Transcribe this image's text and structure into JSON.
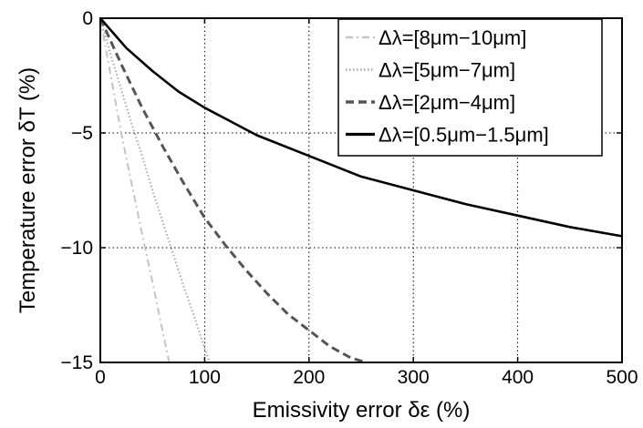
{
  "chart_data": {
    "type": "line",
    "xlabel": "Emissivity error δε (%)",
    "ylabel": "Temperature error δT (%)",
    "xlim": [
      0,
      500
    ],
    "ylim": [
      -15,
      0
    ],
    "xticks": [
      0,
      100,
      200,
      300,
      400,
      500
    ],
    "yticks": [
      0,
      -5,
      -10,
      -15
    ],
    "xtick_labels": [
      "0",
      "100",
      "200",
      "300",
      "400",
      "500"
    ],
    "ytick_labels": [
      "0",
      "−5",
      "−10",
      "−15"
    ],
    "grid": true,
    "legend_position": "top-right",
    "series": [
      {
        "name": "Δλ=[8μm−10μm]",
        "color": "#c4c4c4",
        "dash": "dash-dot",
        "x": [
          0,
          10,
          20,
          30,
          40,
          50,
          60,
          66
        ],
        "y": [
          0,
          -2.5,
          -5.0,
          -7.2,
          -9.4,
          -11.5,
          -13.7,
          -15.0
        ]
      },
      {
        "name": "Δλ=[5μm−7μm]",
        "color": "#a8a8a8",
        "dash": "dotted",
        "x": [
          0,
          10,
          20,
          30,
          40,
          50,
          60,
          70,
          80,
          90,
          100,
          105
        ],
        "y": [
          0,
          -1.6,
          -3.1,
          -4.6,
          -6.0,
          -7.5,
          -8.9,
          -10.3,
          -11.7,
          -13.0,
          -14.4,
          -15.0
        ]
      },
      {
        "name": "Δλ=[2μm−4μm]",
        "color": "#555555",
        "dash": "dashed",
        "x": [
          0,
          20,
          40,
          60,
          80,
          100,
          120,
          140,
          160,
          180,
          200,
          220,
          240,
          255
        ],
        "y": [
          0,
          -2.0,
          -3.9,
          -5.6,
          -7.2,
          -8.7,
          -9.9,
          -11.0,
          -12.0,
          -12.9,
          -13.6,
          -14.3,
          -14.8,
          -15.0
        ]
      },
      {
        "name": "Δλ=[0.5μm−1.5μm]",
        "color": "#000000",
        "dash": "solid",
        "x": [
          0,
          25,
          50,
          75,
          100,
          150,
          200,
          250,
          300,
          350,
          400,
          450,
          500
        ],
        "y": [
          0,
          -1.3,
          -2.3,
          -3.2,
          -3.9,
          -5.1,
          -6.0,
          -6.9,
          -7.5,
          -8.1,
          -8.6,
          -9.1,
          -9.5
        ]
      }
    ]
  }
}
